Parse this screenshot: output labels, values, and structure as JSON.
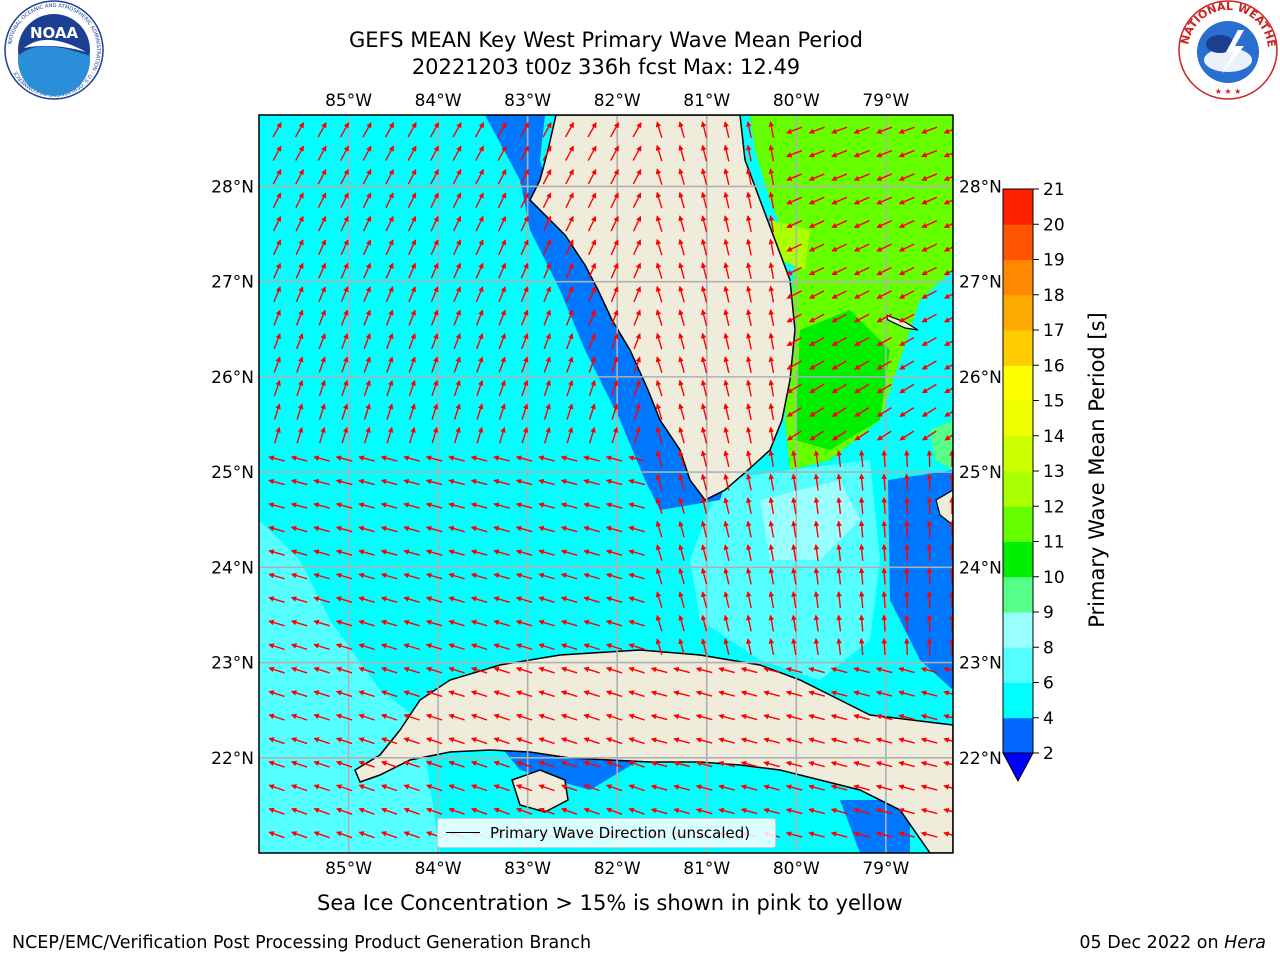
{
  "title": {
    "line1": "GEFS MEAN Key West Primary Wave Mean Period",
    "line2": "20221203 t00z 336h fcst   Max: 12.49"
  },
  "map": {
    "lon_labels": [
      "85°W",
      "84°W",
      "83°W",
      "82°W",
      "81°W",
      "80°W",
      "79°W"
    ],
    "lon_values": [
      -85,
      -84,
      -83,
      -82,
      -81,
      -80,
      -79
    ],
    "lat_labels": [
      "28°N",
      "27°N",
      "26°N",
      "25°N",
      "24°N",
      "23°N",
      "22°N"
    ],
    "lat_values": [
      28,
      27,
      26,
      25,
      24,
      23,
      22
    ],
    "lon_range": [
      -86,
      -78.25
    ],
    "lat_range": [
      21,
      28.75
    ],
    "land_color": "#efecdc",
    "arrow_color": "#ff0000",
    "grid_color": "#b0b0b0"
  },
  "legend": {
    "label": "Primary Wave Direction (unscaled)"
  },
  "colorbar": {
    "label": "Primary Wave Mean Period [s]",
    "ticks": [
      "2",
      "4",
      "6",
      "8",
      "9",
      "10",
      "11",
      "12",
      "13",
      "14",
      "15",
      "16",
      "17",
      "18",
      "19",
      "20",
      "21"
    ],
    "colors": [
      "#0066ff",
      "#00ffff",
      "#55ffff",
      "#99ffff",
      "#55ff88",
      "#00ee00",
      "#66ff00",
      "#aaff00",
      "#ccff00",
      "#eeff00",
      "#ffff00",
      "#ffcc00",
      "#ffaa00",
      "#ff8800",
      "#ff5500",
      "#ff2200",
      "#ff0000"
    ],
    "underflow_color": "#0000ff"
  },
  "caption": "Sea Ice Concentration > 15% is shown in pink to yellow",
  "footer": {
    "left": "NCEP/EMC/Verification Post Processing Product Generation Branch",
    "date": "05 Dec 2022 on ",
    "machine": "Hera"
  },
  "logos": {
    "noaa_text": "NOAA",
    "noaa_ring": "NATIONAL OCEANIC AND ATMOSPHERIC ADMINISTRATION · U.S. DEPARTMENT OF COMMERCE",
    "nws_ring": "NATIONAL WEATHER SERVICE"
  }
}
